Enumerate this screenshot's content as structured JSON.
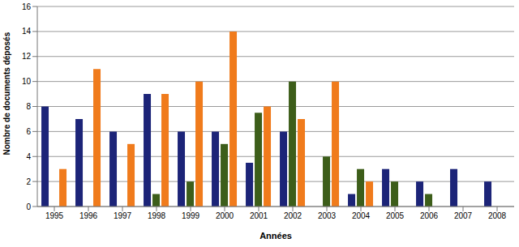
{
  "chart_data": {
    "type": "bar",
    "x_label": "Années",
    "y_label": "Nombre de documents déposés",
    "categories": [
      "1995",
      "1996",
      "1997",
      "1998",
      "1999",
      "2000",
      "2001",
      "2002",
      "2003",
      "2004",
      "2005",
      "2006",
      "2007",
      "2008"
    ],
    "series": [
      {
        "color": "#1c2478",
        "values": [
          8,
          7,
          6,
          9,
          6,
          6,
          3.5,
          6,
          0,
          1,
          3,
          2,
          3,
          2
        ]
      },
      {
        "color": "#3d5e1a",
        "values": [
          0,
          0,
          0,
          1,
          2,
          5,
          7.5,
          10,
          4,
          3,
          2,
          1,
          0,
          0
        ]
      },
      {
        "color": "#f07b1c",
        "values": [
          3,
          11,
          5,
          9,
          10,
          14,
          8,
          7,
          10,
          2,
          0,
          0,
          0,
          0
        ]
      }
    ],
    "ylim": [
      0,
      16
    ],
    "yticks": [
      0,
      2,
      4,
      6,
      8,
      10,
      12,
      14,
      16
    ],
    "grid": true
  }
}
